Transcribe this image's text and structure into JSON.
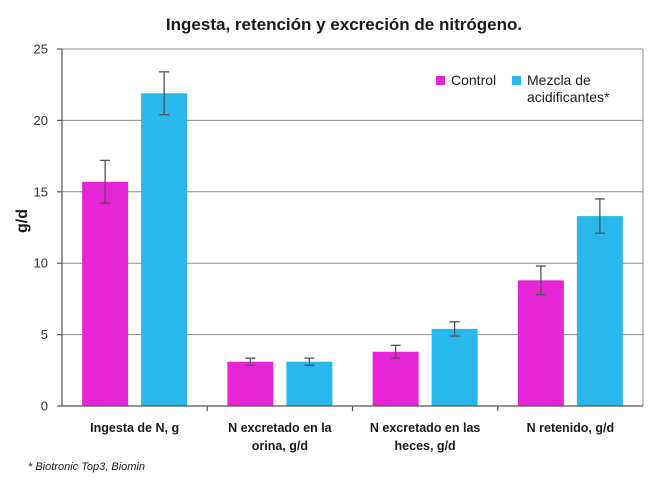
{
  "chart_data": {
    "type": "bar",
    "title": "Ingesta, retención y excreción de nitrógeno.",
    "ylabel": "g/d",
    "xlabel": "",
    "ylim": [
      0,
      25
    ],
    "yticks": [
      0,
      5,
      10,
      15,
      20,
      25
    ],
    "grid": true,
    "legend_position": "top-right",
    "categories": [
      [
        "Ingesta de N, g"
      ],
      [
        "N excretado en la",
        "orina, g/d"
      ],
      [
        "N excretado en las",
        "heces, g/d"
      ],
      [
        "N retenido, g/d"
      ]
    ],
    "series": [
      {
        "name": "Control",
        "color": "#e626d6",
        "values": [
          15.7,
          3.1,
          3.8,
          8.8
        ],
        "errors": [
          1.5,
          0.25,
          0.45,
          1.0
        ]
      },
      {
        "name": "Mezcla de acidificantes*",
        "legend_lines": [
          "Mezcla de",
          "acidificantes*"
        ],
        "color": "#29b7ec",
        "values": [
          21.9,
          3.1,
          5.4,
          13.3
        ],
        "errors": [
          1.5,
          0.25,
          0.5,
          1.2
        ]
      }
    ],
    "footnote": "* Biotronic Top3, Biomin"
  }
}
